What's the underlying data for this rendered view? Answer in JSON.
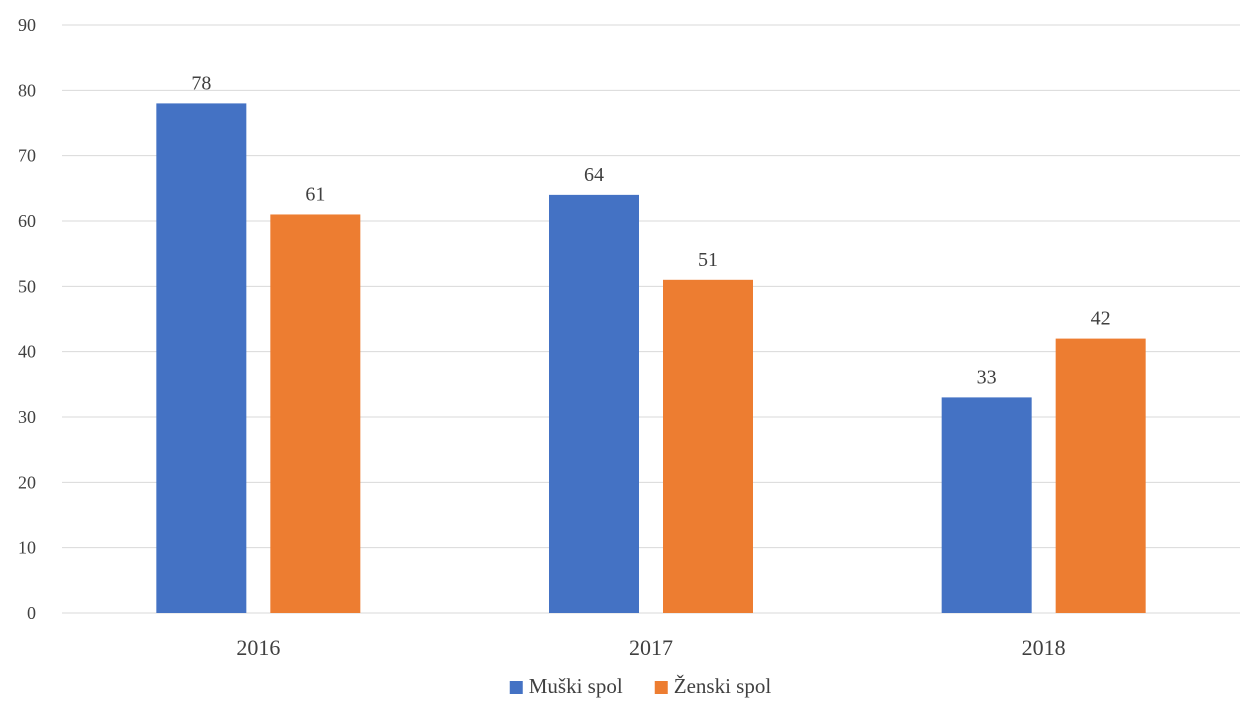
{
  "chart_data": {
    "type": "bar",
    "categories": [
      "2016",
      "2017",
      "2018"
    ],
    "series": [
      {
        "name": "Muški spol",
        "values": [
          78,
          64,
          33
        ],
        "color": "#4472C4"
      },
      {
        "name": "Ženski spol",
        "values": [
          61,
          51,
          42
        ],
        "color": "#ED7D31"
      }
    ],
    "ylim": [
      0,
      90
    ],
    "yticks": [
      0,
      10,
      20,
      30,
      40,
      50,
      60,
      70,
      80,
      90
    ],
    "grid": true,
    "data_labels": true,
    "legend_position": "bottom",
    "gridline_color": "#D9D9D9"
  }
}
